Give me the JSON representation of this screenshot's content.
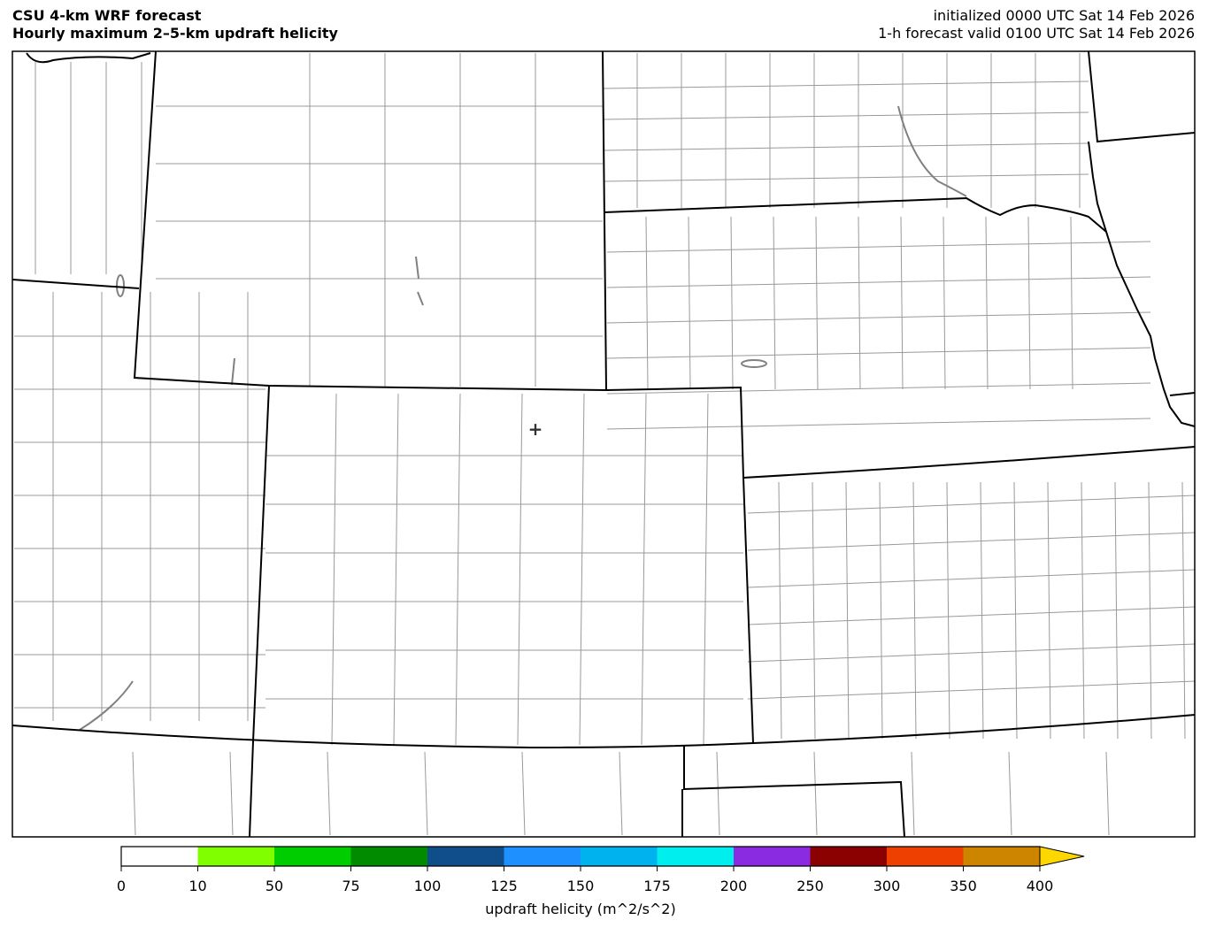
{
  "header": {
    "title_line1": "CSU 4-km WRF forecast",
    "title_line2": "Hourly maximum 2–5-km updraft helicity",
    "init_text": "initialized 0000 UTC Sat 14 Feb 2026",
    "valid_text": "1-h forecast valid 0100 UTC Sat 14 Feb 2026"
  },
  "map": {
    "marker_icon": "plus-marker-icon",
    "state_border_color": "#000000",
    "county_border_color": "#999999",
    "water_color": "#808080"
  },
  "colorbar": {
    "label": "updraft helicity (m^2/s^2)",
    "ticks": [
      "0",
      "10",
      "50",
      "75",
      "100",
      "125",
      "150",
      "175",
      "200",
      "250",
      "300",
      "350",
      "400"
    ],
    "colors": [
      "#ffffff",
      "#7fff00",
      "#00cd00",
      "#008b00",
      "#104e8b",
      "#1e90ff",
      "#00b2ee",
      "#00eeee",
      "#8a2be2",
      "#8b0000",
      "#ee4000",
      "#cd8500"
    ],
    "extend_color": "#ffd700"
  }
}
